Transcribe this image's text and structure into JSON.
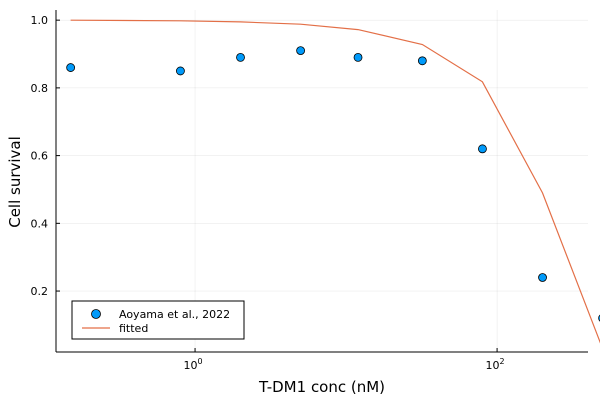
{
  "chart_data": {
    "type": "scatter",
    "xlabel": "T-DM1 conc (nM)",
    "ylabel": "Cell survival",
    "x_scale": "log10",
    "xlim": [
      0.12,
      400
    ],
    "ylim": [
      0.02,
      1.03
    ],
    "grid": true,
    "legend_position": "bottom-left",
    "x_ticks": [
      {
        "value": 1,
        "base": "10",
        "exp": "0"
      },
      {
        "value": 100,
        "base": "10",
        "exp": "2"
      }
    ],
    "y_ticks": [
      {
        "value": 0.2,
        "label": "0.2"
      },
      {
        "value": 0.4,
        "label": "0.4"
      },
      {
        "value": 0.6,
        "label": "0.6"
      },
      {
        "value": 0.8,
        "label": "0.8"
      },
      {
        "value": 1.0,
        "label": "1.0"
      }
    ],
    "series": [
      {
        "name": "Aoyama et al., 2022",
        "kind": "scatter",
        "color": "#009AFA",
        "x": [
          0.15,
          0.8,
          2,
          5,
          12,
          32,
          80,
          200,
          500
        ],
        "y": [
          0.86,
          0.85,
          0.89,
          0.91,
          0.89,
          0.88,
          0.62,
          0.24,
          0.12
        ]
      },
      {
        "name": "fitted",
        "kind": "line",
        "color": "#E36F47",
        "x": [
          0.15,
          0.8,
          2,
          5,
          12,
          32,
          80,
          200,
          500
        ],
        "y": [
          1.0,
          0.998,
          0.995,
          0.988,
          0.972,
          0.928,
          0.818,
          0.49,
          0.03
        ]
      }
    ]
  }
}
